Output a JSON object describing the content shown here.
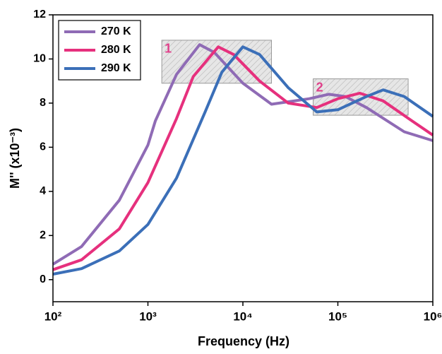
{
  "chart_data": {
    "type": "line",
    "xlabel": "Frequency (Hz)",
    "ylabel": "M'' (x10⁻³)",
    "xscale": "log",
    "xlim": [
      100,
      1000000
    ],
    "ylim": [
      -1,
      12
    ],
    "xticks": [
      {
        "value": 100,
        "label": "10²"
      },
      {
        "value": 1000,
        "label": "10³"
      },
      {
        "value": 10000,
        "label": "10⁴"
      },
      {
        "value": 100000,
        "label": "10⁵"
      },
      {
        "value": 1000000,
        "label": "10⁶"
      }
    ],
    "yticks": [
      0,
      2,
      4,
      6,
      8,
      10,
      12
    ],
    "legend": "upper left",
    "series": [
      {
        "name": "270 K",
        "color": "#8f6bb5",
        "x": [
          100,
          200,
          500,
          1000,
          1200,
          2000,
          3500,
          5000,
          10000,
          20000,
          50000,
          80000,
          120000,
          200000,
          500000,
          1000000
        ],
        "values": [
          0.7,
          1.5,
          3.6,
          6.1,
          7.2,
          9.3,
          10.65,
          10.3,
          8.9,
          7.95,
          8.2,
          8.4,
          8.3,
          7.8,
          6.7,
          6.3
        ]
      },
      {
        "name": "280 K",
        "color": "#e6307d",
        "x": [
          100,
          200,
          500,
          1000,
          2000,
          3000,
          5500,
          8000,
          15000,
          30000,
          60000,
          100000,
          170000,
          300000,
          600000,
          1000000
        ],
        "values": [
          0.45,
          0.9,
          2.3,
          4.4,
          7.3,
          9.2,
          10.55,
          10.2,
          9.0,
          8.0,
          7.8,
          8.2,
          8.45,
          8.1,
          7.2,
          6.55
        ]
      },
      {
        "name": "290 K",
        "color": "#3b6fb8",
        "x": [
          100,
          200,
          500,
          1000,
          2000,
          4000,
          6000,
          10000,
          15000,
          30000,
          60000,
          100000,
          200000,
          300000,
          500000,
          1000000
        ],
        "values": [
          0.25,
          0.5,
          1.3,
          2.5,
          4.6,
          7.6,
          9.4,
          10.55,
          10.2,
          8.7,
          7.6,
          7.7,
          8.3,
          8.6,
          8.3,
          7.4
        ]
      }
    ],
    "annotations": [
      {
        "label": "1",
        "color": "#e0408a",
        "x": [
          1400,
          20000
        ],
        "y": [
          8.9,
          10.85
        ]
      },
      {
        "label": "2",
        "color": "#e0408a",
        "x": [
          55000,
          550000
        ],
        "y": [
          7.45,
          9.1
        ]
      }
    ]
  }
}
